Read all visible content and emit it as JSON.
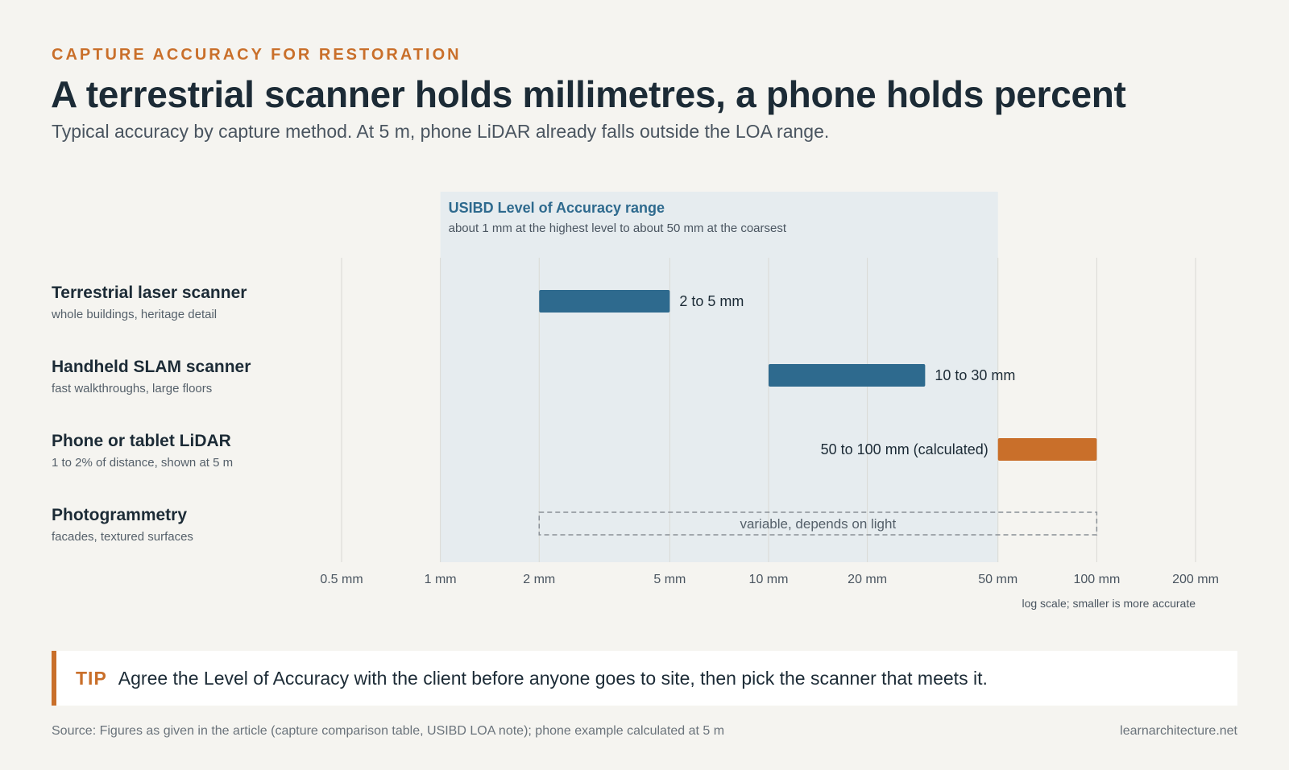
{
  "header": {
    "eyebrow": "CAPTURE ACCURACY FOR RESTORATION",
    "title": "A terrestrial scanner holds millimetres, a phone holds percent",
    "subtitle": "Typical accuracy by capture method. At 5 m, phone LiDAR already falls outside the LOA range."
  },
  "chart_data": {
    "type": "bar",
    "orientation": "horizontal-range",
    "x_scale": "log",
    "xlim_mm": [
      0.5,
      200
    ],
    "x_ticks": [
      {
        "value": 0.5,
        "label": "0.5 mm"
      },
      {
        "value": 1,
        "label": "1 mm"
      },
      {
        "value": 2,
        "label": "2 mm"
      },
      {
        "value": 5,
        "label": "5 mm"
      },
      {
        "value": 10,
        "label": "10 mm"
      },
      {
        "value": 20,
        "label": "20 mm"
      },
      {
        "value": 50,
        "label": "50 mm"
      },
      {
        "value": 100,
        "label": "100 mm"
      },
      {
        "value": 200,
        "label": "200 mm"
      }
    ],
    "axis_note": "log scale; smaller is more accurate",
    "grid": true,
    "band": {
      "from": 1,
      "to": 50,
      "title": "USIBD Level of Accuracy range",
      "note": "about 1 mm at the highest level to about 50 mm at the coarsest",
      "color": "#e6ecef",
      "title_color": "#2e6a8e"
    },
    "rows": [
      {
        "name": "Terrestrial laser scanner",
        "desc": "whole buildings, heritage detail",
        "min": 2,
        "max": 5,
        "label": "2 to 5 mm",
        "style": "solid",
        "color": "#2e6a8e",
        "label_side": "right"
      },
      {
        "name": "Handheld SLAM scanner",
        "desc": "fast walkthroughs, large floors",
        "min": 10,
        "max": 30,
        "label": "10 to 30 mm",
        "style": "solid",
        "color": "#2e6a8e",
        "label_side": "right"
      },
      {
        "name": "Phone or tablet LiDAR",
        "desc": "1 to 2% of distance, shown at 5 m",
        "min": 50,
        "max": 100,
        "label": "50 to 100 mm (calculated)",
        "style": "solid",
        "color": "#c96f2a",
        "label_side": "left"
      },
      {
        "name": "Photogrammetry",
        "desc": "facades, textured surfaces",
        "min": 2,
        "max": 100,
        "label": "variable, depends on light",
        "style": "dashed",
        "color": "#8a9096",
        "label_side": "inside"
      }
    ]
  },
  "tip": {
    "tag": "TIP",
    "text": "Agree the Level of Accuracy with the client before anyone goes to site, then pick the scanner that meets it."
  },
  "footer": {
    "source": "Source: Figures as given in the article (capture comparison table, USIBD LOA note); phone example calculated at 5 m",
    "site": "learnarchitecture.net"
  }
}
